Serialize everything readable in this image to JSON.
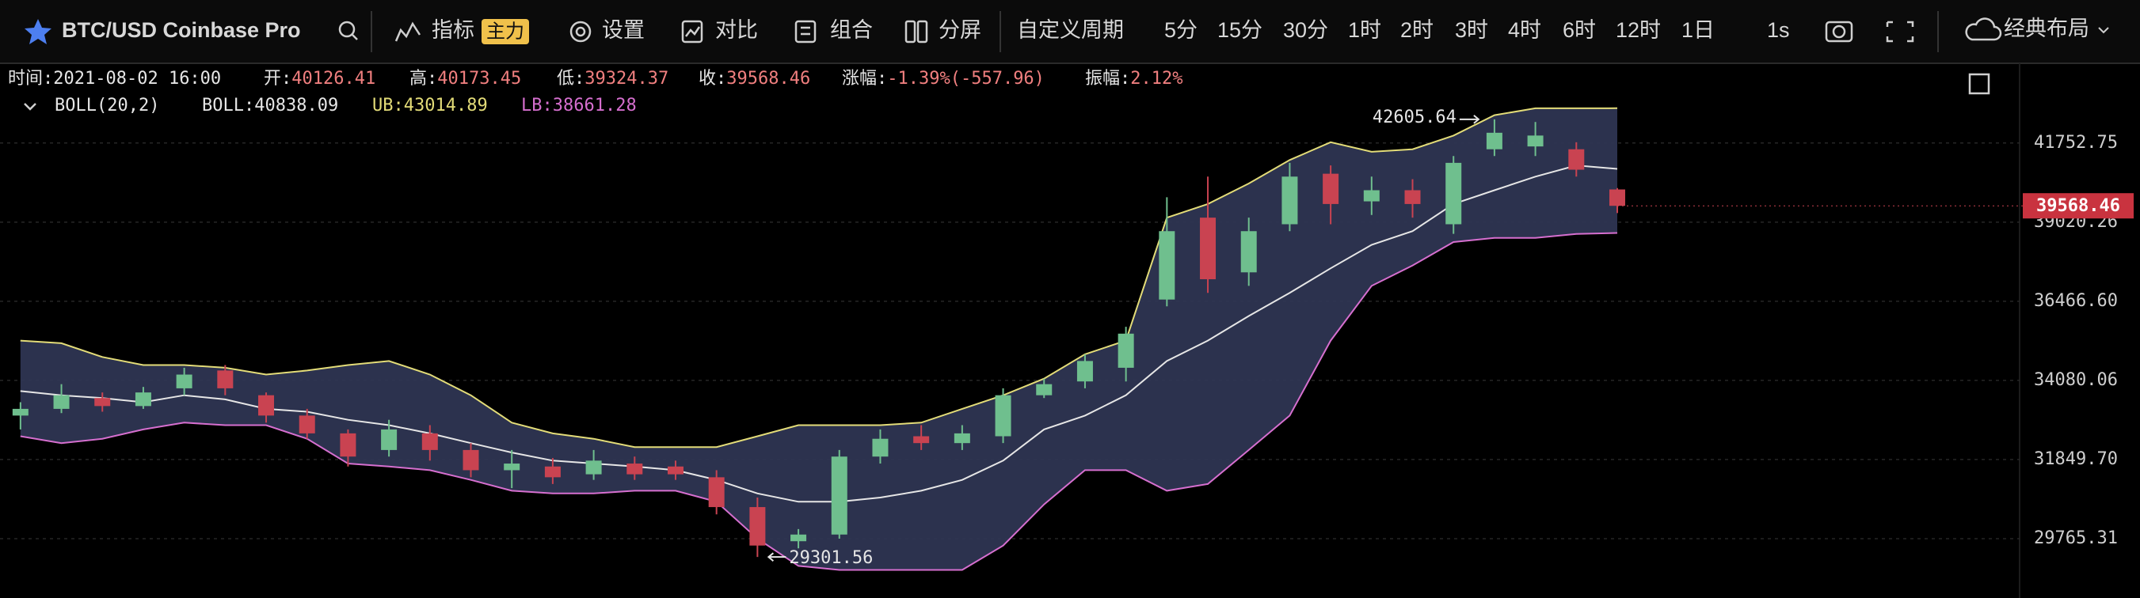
{
  "toolbar": {
    "symbol": "BTC/USD Coinbase Pro",
    "items": [
      "指标",
      "设置",
      "对比",
      "组合",
      "分屏"
    ],
    "badge": "主力",
    "period_label": "自定义周期",
    "periods": [
      "5分",
      "15分",
      "30分",
      "1时",
      "2时",
      "3时",
      "4时",
      "6时",
      "12时",
      "1日"
    ],
    "active_period": "4时",
    "speed": "1s",
    "layout": "经典布局"
  },
  "info": {
    "time_label": "时间:",
    "time": "2021-08-02 16:00",
    "open_label": "开:",
    "high_label": "高:",
    "low_label": "低:",
    "close_label": "收:",
    "change_label": "涨幅:",
    "change": "-1.39%(-557.96)",
    "amplitude_label": "振幅:",
    "amplitude": "2.12%"
  },
  "chart_data": {
    "type": "candlestick",
    "scale": "log",
    "grid": true,
    "up_color": "#6fbf8e",
    "down_color": "#c94351",
    "ylim": [
      28407,
      44669
    ],
    "yticks": [
      29765.31,
      {
        "value": 31849.7,
        "label": "31849.70"
      },
      34080.06,
      {
        "value": 36466.6,
        "label": "36466.60"
      },
      39020.26,
      41752.75
    ],
    "open": [
      33070,
      33260,
      33570,
      33340,
      33850,
      34370,
      33650,
      33070,
      32570,
      32110,
      32570,
      32110,
      31560,
      31660,
      31450,
      31740,
      31660,
      31370,
      30580,
      29700,
      29870,
      31930,
      32490,
      32300,
      32490,
      33650,
      34050,
      34450,
      36520,
      39170,
      37380,
      38950,
      40670,
      39720,
      40100,
      38950,
      41530,
      41630,
      41530,
      40126.41
    ],
    "high": [
      33450,
      33970,
      33730,
      33890,
      34450,
      34530,
      33730,
      33260,
      32680,
      32950,
      32800,
      32300,
      32110,
      31890,
      32110,
      31930,
      31820,
      31560,
      30830,
      30010,
      32110,
      32680,
      32800,
      32800,
      33850,
      34130,
      34850,
      35680,
      39860,
      40570,
      39170,
      41050,
      40960,
      40570,
      40480,
      41290,
      42605.64,
      42510,
      41780,
      40173.45
    ],
    "low": [
      32680,
      33140,
      33180,
      33260,
      33650,
      33650,
      32870,
      32420,
      31660,
      31930,
      31820,
      31370,
      31080,
      31190,
      31300,
      31300,
      31300,
      30390,
      29301.56,
      29520,
      29765,
      31740,
      32110,
      32110,
      32300,
      33570,
      33850,
      34050,
      36310,
      36730,
      36950,
      38720,
      38950,
      39260,
      39170,
      38630,
      41290,
      41290,
      40570,
      39324.37
    ],
    "close": [
      33260,
      33650,
      33340,
      33730,
      34250,
      33850,
      33070,
      32570,
      31930,
      32680,
      32110,
      31560,
      31740,
      31370,
      31820,
      31450,
      31450,
      30580,
      29590,
      29870,
      31930,
      32420,
      32300,
      32570,
      33650,
      33970,
      34650,
      35470,
      38720,
      37160,
      38720,
      40570,
      39630,
      40100,
      39630,
      41050,
      42120,
      42020,
      40810,
      39568.46
    ],
    "indicator": {
      "name": "BOLL(20,2)",
      "fill": "#2e3552",
      "mid": {
        "label": "BOLL:",
        "color": "#e6e6e6",
        "values": [
          33770,
          33650,
          33570,
          33450,
          33650,
          33530,
          33260,
          33180,
          32950,
          32800,
          32570,
          32300,
          32040,
          31820,
          31740,
          31660,
          31560,
          31300,
          30940,
          30720,
          30720,
          30830,
          31010,
          31300,
          31820,
          32680,
          33070,
          33650,
          34650,
          35260,
          36010,
          36730,
          37510,
          38270,
          38720,
          39630,
          40100,
          40570,
          40960,
          40838.09
        ]
      },
      "upper": {
        "label": "UB:",
        "color": "#e3dc78",
        "values": [
          35260,
          35180,
          34770,
          34530,
          34530,
          34450,
          34250,
          34370,
          34530,
          34650,
          34250,
          33650,
          32870,
          32570,
          32420,
          32190,
          32190,
          32190,
          32490,
          32800,
          32800,
          32800,
          32870,
          33260,
          33650,
          34130,
          34850,
          35260,
          39170,
          39630,
          40330,
          41150,
          41780,
          41440,
          41530,
          42020,
          42760,
          43010,
          43010,
          43014.89
        ]
      },
      "lower": {
        "label": "LB:",
        "color": "#d66fcf",
        "values": [
          32490,
          32300,
          32420,
          32680,
          32870,
          32800,
          32800,
          32420,
          31740,
          31660,
          31560,
          31300,
          31010,
          30940,
          30940,
          31010,
          31010,
          30720,
          29765,
          29080,
          28980,
          28980,
          28980,
          28980,
          29590,
          30650,
          31560,
          31560,
          31010,
          31190,
          32110,
          33070,
          35260,
          36950,
          37600,
          38360,
          38500,
          38500,
          38630,
          38661.28
        ]
      }
    }
  }
}
